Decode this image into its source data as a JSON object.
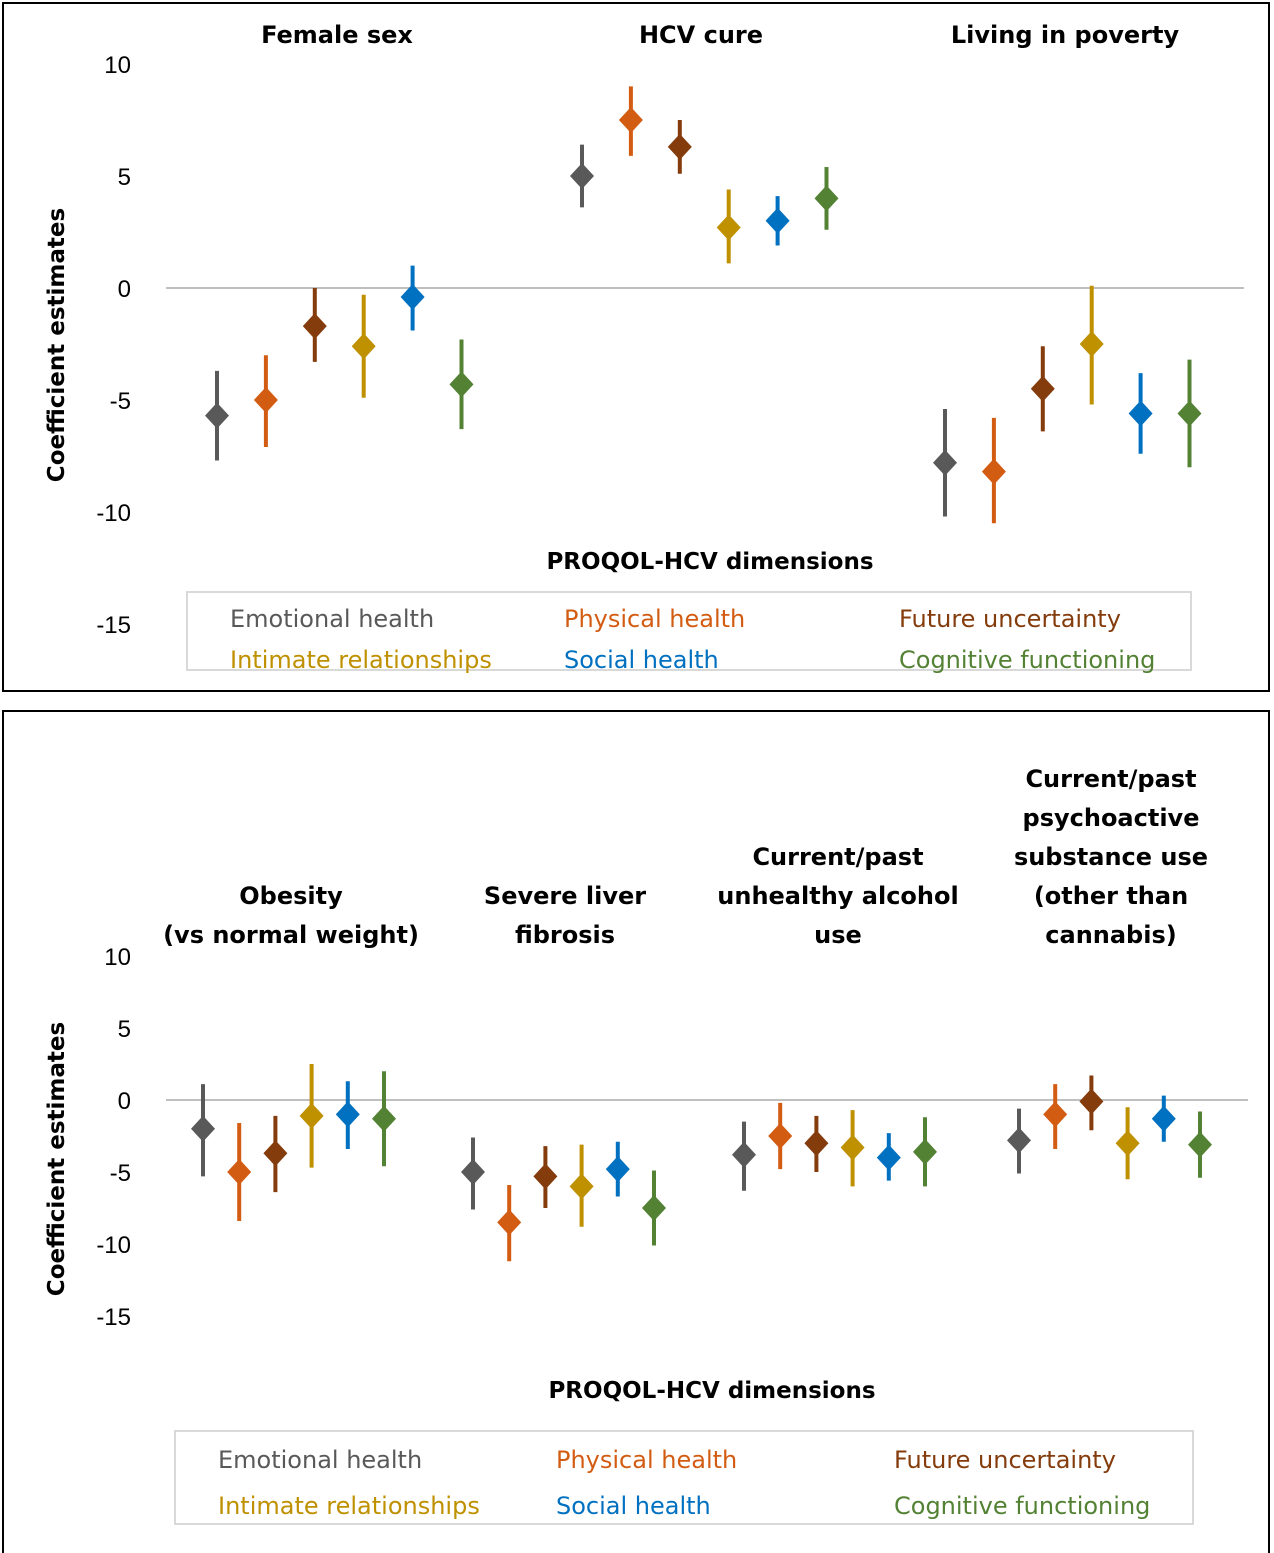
{
  "colors": {
    "Emotional health": "#595959",
    "Physical health": "#d35c13",
    "Future uncertainty": "#843c0c",
    "Intimate relationships": "#bf9000",
    "Social health": "#0070c0",
    "Cognitive functioning": "#548235"
  },
  "chart_data": [
    {
      "type": "scatter",
      "xlabel": "PROQOL-HCV dimensions",
      "ylabel": "Coefficient estimates",
      "yticks": [
        "10",
        "5",
        "0",
        "-5",
        "-10",
        "-15"
      ],
      "ylim": [
        -15,
        10
      ],
      "legend": [
        "Emotional health",
        "Physical health",
        "Future uncertainty",
        "Intimate relationships",
        "Social health",
        "Cognitive functioning"
      ],
      "legend_position": "bottom",
      "groups": [
        {
          "label": [
            "Female sex"
          ],
          "points": [
            {
              "series": "Emotional health",
              "estimate": -5.7,
              "lower": -7.7,
              "upper": -3.7
            },
            {
              "series": "Physical health",
              "estimate": -5.0,
              "lower": -7.1,
              "upper": -3.0
            },
            {
              "series": "Future uncertainty",
              "estimate": -1.7,
              "lower": -3.3,
              "upper": 0.0
            },
            {
              "series": "Intimate relationships",
              "estimate": -2.6,
              "lower": -4.9,
              "upper": -0.3
            },
            {
              "series": "Social health",
              "estimate": -0.4,
              "lower": -1.9,
              "upper": 1.0
            },
            {
              "series": "Cognitive functioning",
              "estimate": -4.3,
              "lower": -6.3,
              "upper": -2.3
            }
          ]
        },
        {
          "label": [
            "HCV cure"
          ],
          "points": [
            {
              "series": "Emotional health",
              "estimate": 5.0,
              "lower": 3.6,
              "upper": 6.4
            },
            {
              "series": "Physical health",
              "estimate": 7.5,
              "lower": 5.9,
              "upper": 9.0
            },
            {
              "series": "Future uncertainty",
              "estimate": 6.3,
              "lower": 5.1,
              "upper": 7.5
            },
            {
              "series": "Intimate relationships",
              "estimate": 2.7,
              "lower": 1.1,
              "upper": 4.4
            },
            {
              "series": "Social health",
              "estimate": 3.0,
              "lower": 1.9,
              "upper": 4.1
            },
            {
              "series": "Cognitive functioning",
              "estimate": 4.0,
              "lower": 2.6,
              "upper": 5.4
            }
          ]
        },
        {
          "label": [
            "Living in poverty"
          ],
          "points": [
            {
              "series": "Emotional health",
              "estimate": -7.8,
              "lower": -10.2,
              "upper": -5.4
            },
            {
              "series": "Physical health",
              "estimate": -8.2,
              "lower": -10.5,
              "upper": -5.8
            },
            {
              "series": "Future uncertainty",
              "estimate": -4.5,
              "lower": -6.4,
              "upper": -2.6
            },
            {
              "series": "Intimate relationships",
              "estimate": -2.5,
              "lower": -5.2,
              "upper": 0.1
            },
            {
              "series": "Social health",
              "estimate": -5.6,
              "lower": -7.4,
              "upper": -3.8
            },
            {
              "series": "Cognitive functioning",
              "estimate": -5.6,
              "lower": -8.0,
              "upper": -3.2
            }
          ]
        }
      ]
    },
    {
      "type": "scatter",
      "xlabel": "PROQOL-HCV dimensions",
      "ylabel": "Coefficient estimates",
      "yticks": [
        "10",
        "5",
        "0",
        "-5",
        "-10",
        "-15"
      ],
      "ylim": [
        -15,
        10
      ],
      "legend": [
        "Emotional health",
        "Physical health",
        "Future uncertainty",
        "Intimate relationships",
        "Social health",
        "Cognitive functioning"
      ],
      "legend_position": "bottom",
      "groups": [
        {
          "label": [
            "Obesity",
            "(vs normal weight)"
          ],
          "points": [
            {
              "series": "Emotional health",
              "estimate": -2.0,
              "lower": -5.3,
              "upper": 1.1
            },
            {
              "series": "Physical health",
              "estimate": -5.0,
              "lower": -8.4,
              "upper": -1.6
            },
            {
              "series": "Future uncertainty",
              "estimate": -3.7,
              "lower": -6.4,
              "upper": -1.1
            },
            {
              "series": "Intimate relationships",
              "estimate": -1.1,
              "lower": -4.7,
              "upper": 2.5
            },
            {
              "series": "Social health",
              "estimate": -1.0,
              "lower": -3.4,
              "upper": 1.3
            },
            {
              "series": "Cognitive functioning",
              "estimate": -1.3,
              "lower": -4.6,
              "upper": 2.0
            }
          ]
        },
        {
          "label": [
            "Severe liver",
            "fibrosis"
          ],
          "points": [
            {
              "series": "Emotional health",
              "estimate": -5.0,
              "lower": -7.6,
              "upper": -2.6
            },
            {
              "series": "Physical health",
              "estimate": -8.5,
              "lower": -11.2,
              "upper": -5.9
            },
            {
              "series": "Future uncertainty",
              "estimate": -5.3,
              "lower": -7.5,
              "upper": -3.2
            },
            {
              "series": "Intimate relationships",
              "estimate": -6.0,
              "lower": -8.8,
              "upper": -3.1
            },
            {
              "series": "Social health",
              "estimate": -4.8,
              "lower": -6.7,
              "upper": -2.9
            },
            {
              "series": "Cognitive functioning",
              "estimate": -7.5,
              "lower": -10.1,
              "upper": -4.9
            }
          ]
        },
        {
          "label": [
            "Current/past",
            "unhealthy alcohol",
            "use"
          ],
          "points": [
            {
              "series": "Emotional health",
              "estimate": -3.8,
              "lower": -6.3,
              "upper": -1.5
            },
            {
              "series": "Physical health",
              "estimate": -2.5,
              "lower": -4.8,
              "upper": -0.2
            },
            {
              "series": "Future uncertainty",
              "estimate": -3.0,
              "lower": -5.0,
              "upper": -1.1
            },
            {
              "series": "Intimate relationships",
              "estimate": -3.3,
              "lower": -6.0,
              "upper": -0.7
            },
            {
              "series": "Social health",
              "estimate": -4.0,
              "lower": -5.6,
              "upper": -2.3
            },
            {
              "series": "Cognitive functioning",
              "estimate": -3.6,
              "lower": -6.0,
              "upper": -1.2
            }
          ]
        },
        {
          "label": [
            "Current/past",
            "psychoactive",
            "substance use",
            "(other than",
            "cannabis)"
          ],
          "points": [
            {
              "series": "Emotional health",
              "estimate": -2.8,
              "lower": -5.1,
              "upper": -0.6
            },
            {
              "series": "Physical health",
              "estimate": -1.0,
              "lower": -3.4,
              "upper": 1.1
            },
            {
              "series": "Future uncertainty",
              "estimate": -0.1,
              "lower": -2.1,
              "upper": 1.7
            },
            {
              "series": "Intimate relationships",
              "estimate": -3.0,
              "lower": -5.5,
              "upper": -0.5
            },
            {
              "series": "Social health",
              "estimate": -1.3,
              "lower": -2.9,
              "upper": 0.3
            },
            {
              "series": "Cognitive functioning",
              "estimate": -3.1,
              "lower": -5.4,
              "upper": -0.8
            }
          ]
        }
      ]
    }
  ]
}
